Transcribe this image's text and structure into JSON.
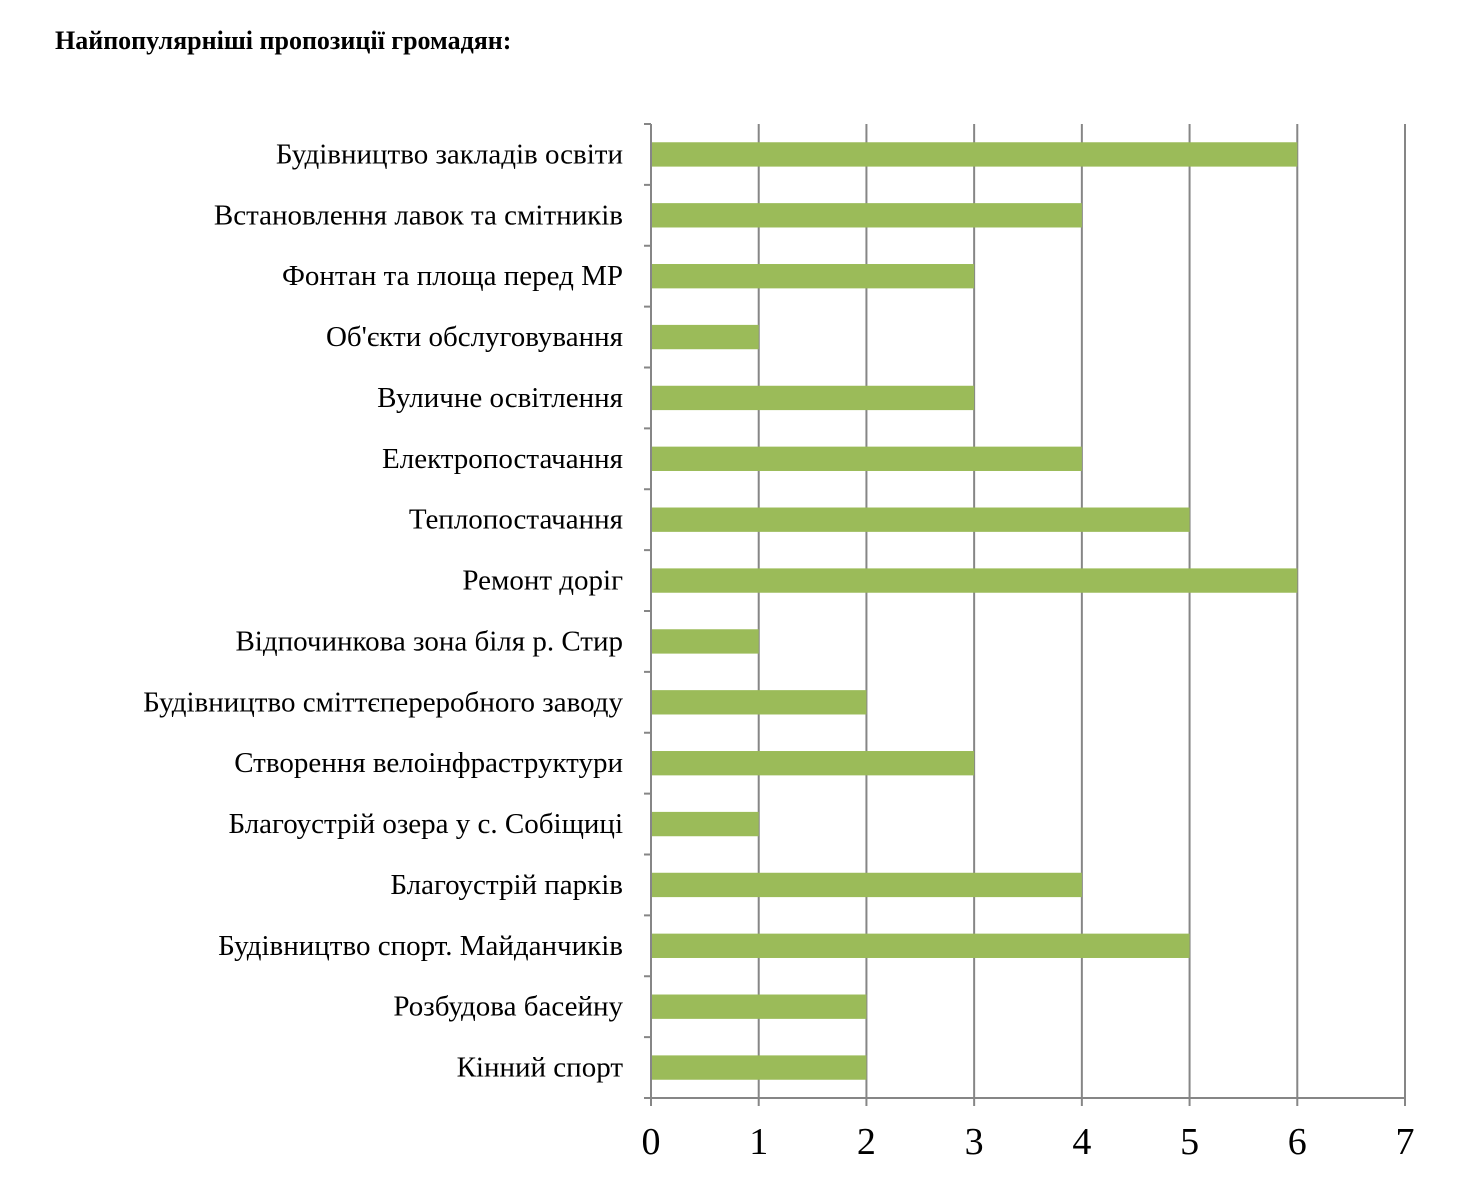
{
  "page": {
    "title": "Найпопулярніші пропозиції громадян:"
  },
  "colors": {
    "bar": "#9bbb59",
    "grid": "#868686",
    "axis": "#868686"
  },
  "chart_data": {
    "type": "bar",
    "orientation": "horizontal",
    "title": "",
    "xlabel": "",
    "ylabel": "",
    "categories": [
      "Будівництво закладів освіти",
      "Встановлення лавок та смітників",
      "Фонтан та площа перед МР",
      "Об'єкти обслуговування ",
      "Вуличне освітлення",
      "Електропостачання",
      "Теплопостачання",
      "Ремонт доріг",
      "Відпочинкова зона біля р. Стир",
      "Будівництво сміттєпереробного заводу",
      "Створення велоінфраструктури",
      "Благоустрій озера у с. Собіщиці",
      "Благоустрій парків",
      "Будівництво спорт. Майданчиків",
      "Розбудова басейну",
      "Кінний спорт"
    ],
    "values": [
      6,
      4,
      3,
      1,
      3,
      4,
      5,
      6,
      1,
      2,
      3,
      1,
      4,
      5,
      2,
      2
    ],
    "xlim": [
      0,
      7
    ],
    "xticks": [
      "0",
      "1",
      "2",
      "3",
      "4",
      "5",
      "6",
      "7"
    ],
    "grid": "vertical",
    "legend": "none"
  }
}
